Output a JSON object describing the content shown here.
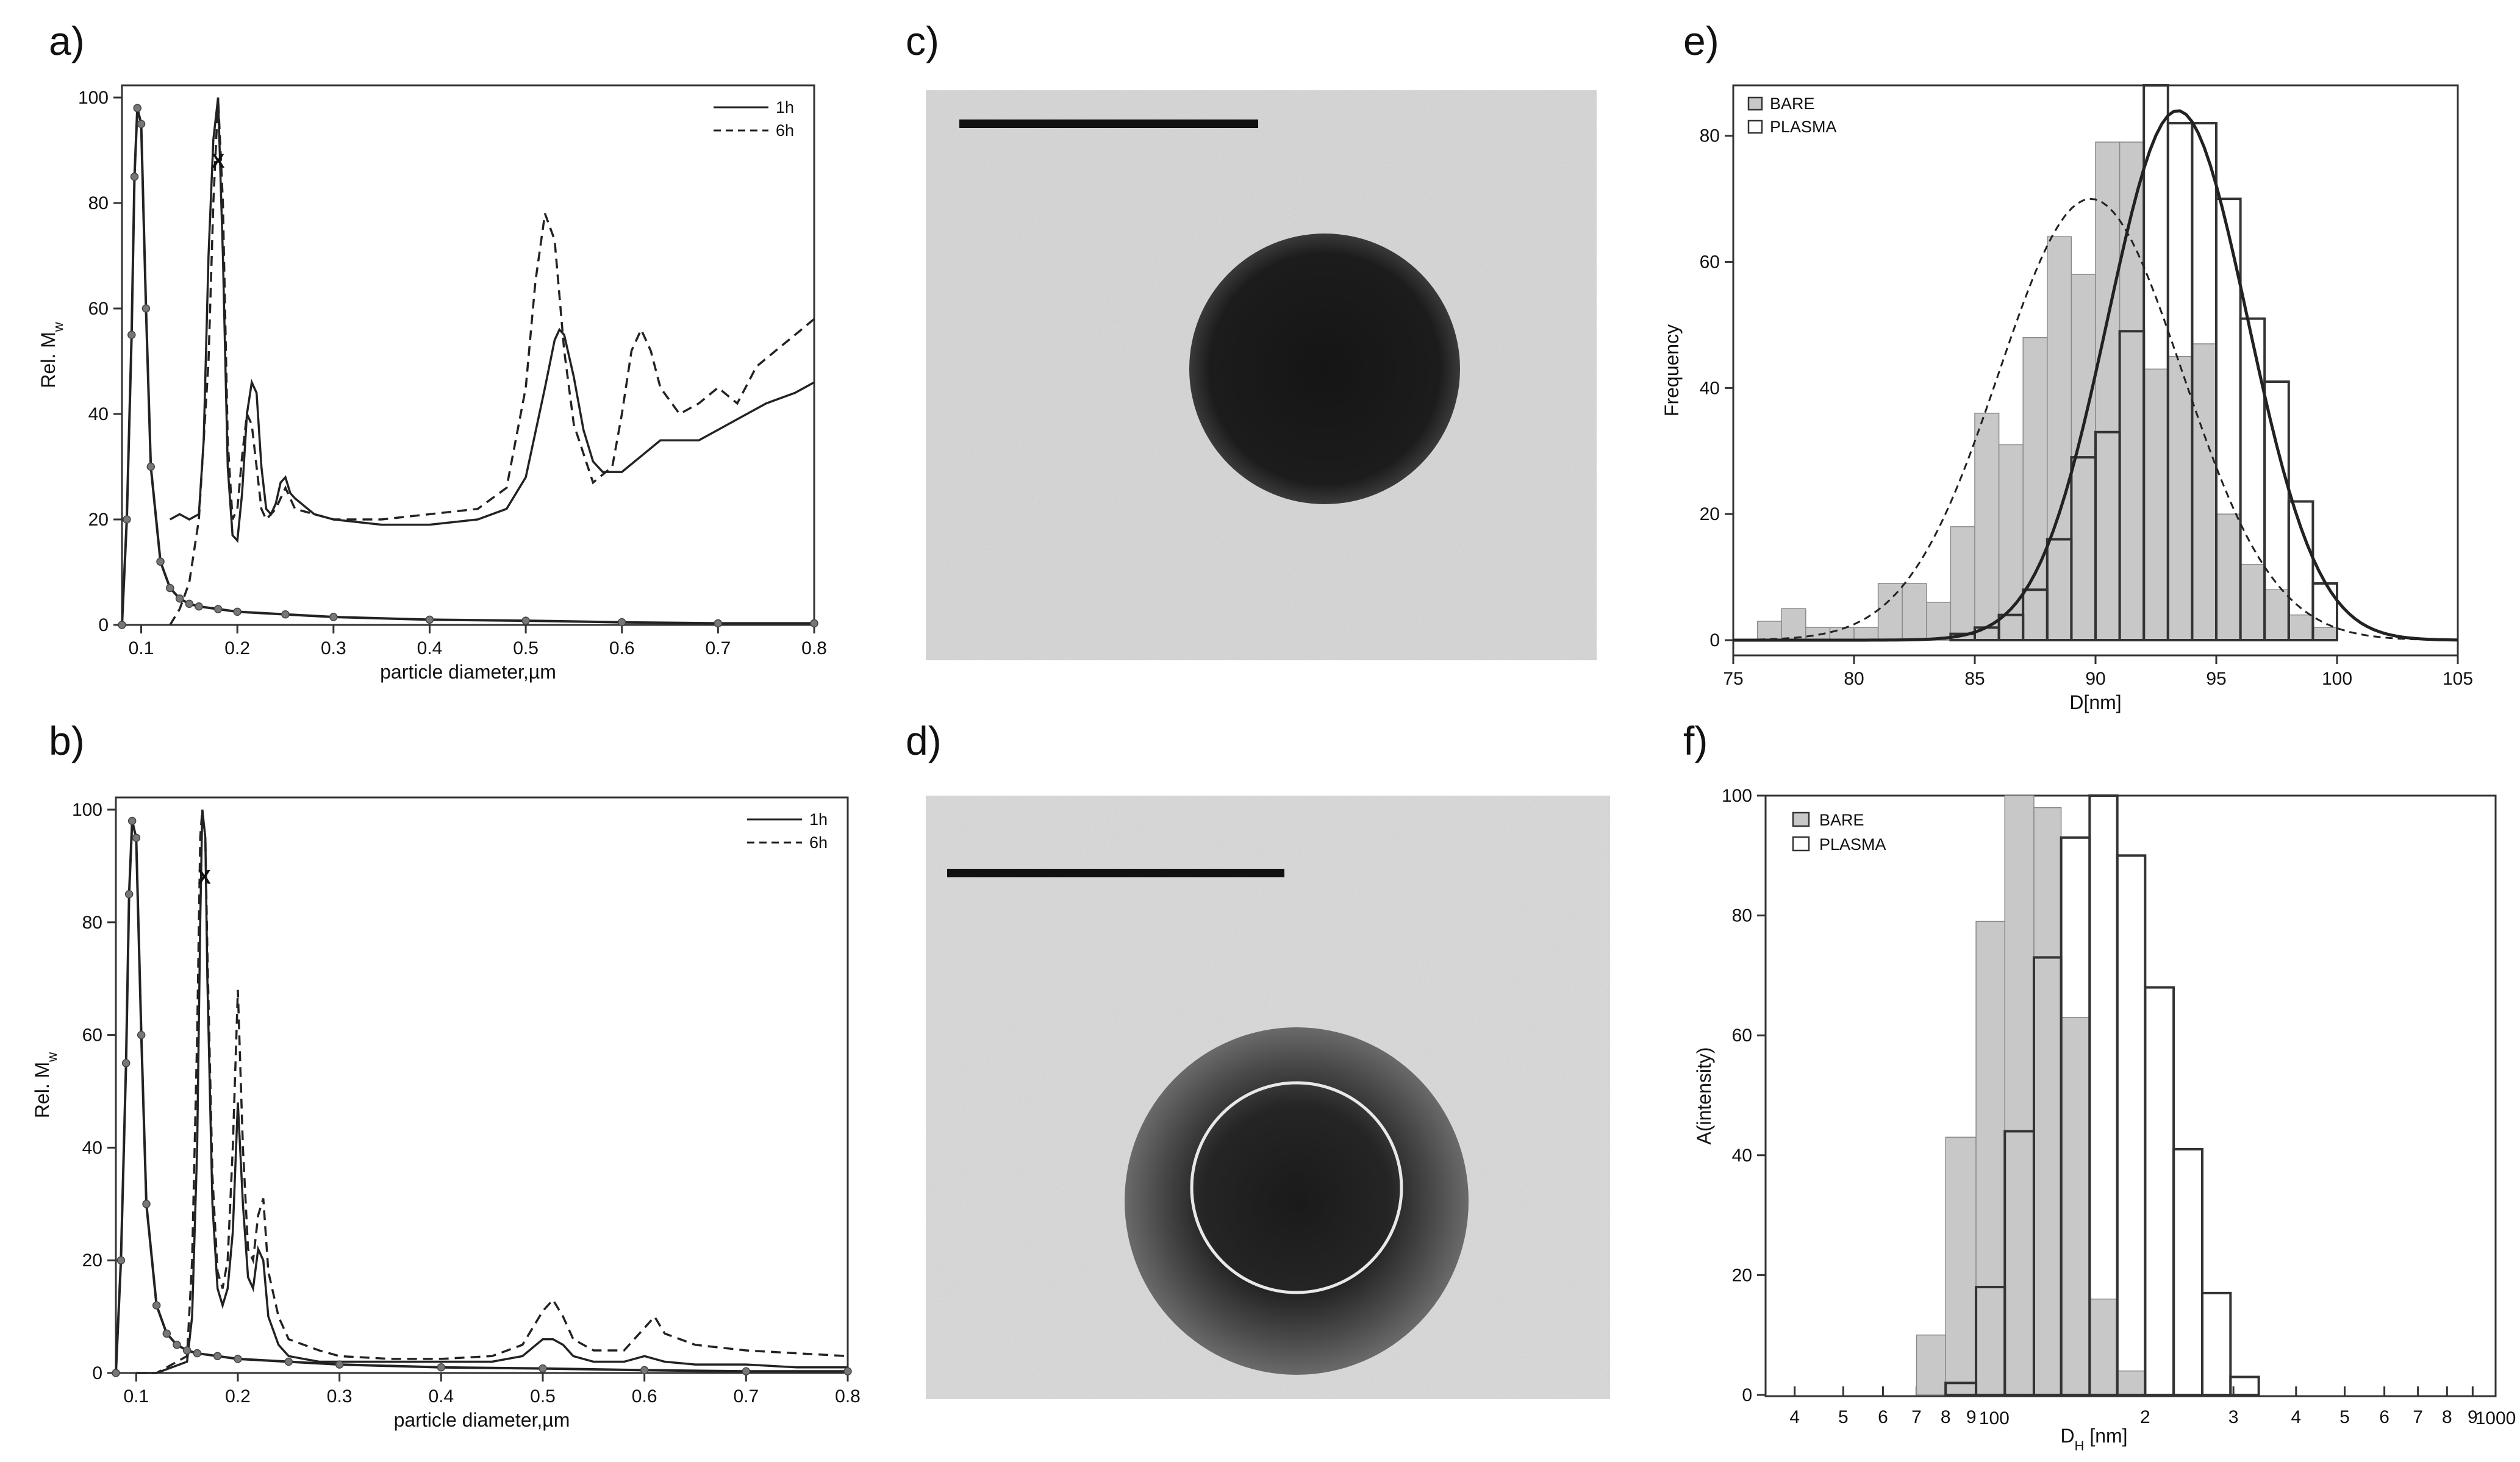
{
  "panels": {
    "a": {
      "label": "a)"
    },
    "b": {
      "label": "b)"
    },
    "c": {
      "label": "c)"
    },
    "d": {
      "label": "d)"
    },
    "e": {
      "label": "e)"
    },
    "f": {
      "label": "f)"
    }
  },
  "marker_text": "X",
  "colors": {
    "line": "#222222",
    "bar_fill": "#c8c8c8",
    "bar_edge": "#333333",
    "tem_bg": "#d8d8d8",
    "tem_particle": "#1a1a1a"
  },
  "chart_data": [
    {
      "id": "a",
      "type": "line",
      "xlabel": "particle diameter,µm",
      "ylabel": "Rel. M",
      "ylabel_sub": "w",
      "xlim": [
        0.08,
        0.8
      ],
      "ylim": [
        0,
        100
      ],
      "xticks": [
        "0.1",
        "0.2",
        "0.3",
        "0.4",
        "0.5",
        "0.6",
        "0.7",
        "0.8"
      ],
      "yticks": [
        "0",
        "20",
        "40",
        "60",
        "80",
        "100"
      ],
      "legend_position": "top-right",
      "marker_x": 0.18,
      "marker_y": 89,
      "series": [
        {
          "name": "1h",
          "style": "solid",
          "x": [
            0.13,
            0.14,
            0.15,
            0.16,
            0.165,
            0.17,
            0.175,
            0.18,
            0.185,
            0.19,
            0.195,
            0.2,
            0.205,
            0.21,
            0.215,
            0.22,
            0.225,
            0.23,
            0.235,
            0.24,
            0.245,
            0.25,
            0.255,
            0.26,
            0.28,
            0.3,
            0.35,
            0.4,
            0.45,
            0.48,
            0.5,
            0.52,
            0.53,
            0.535,
            0.54,
            0.55,
            0.56,
            0.57,
            0.58,
            0.6,
            0.62,
            0.64,
            0.66,
            0.68,
            0.7,
            0.72,
            0.75,
            0.78,
            0.8
          ],
          "y": [
            20,
            21,
            20,
            21,
            35,
            70,
            92,
            100,
            70,
            30,
            17,
            16,
            25,
            40,
            46,
            44,
            30,
            22,
            21,
            23,
            27,
            28,
            25,
            24,
            21,
            20,
            19,
            19,
            20,
            22,
            28,
            45,
            54,
            56,
            55,
            47,
            37,
            31,
            29,
            29,
            32,
            35,
            35,
            35,
            37,
            39,
            42,
            44,
            46
          ]
        },
        {
          "name": "6h",
          "style": "dashed",
          "x": [
            0.13,
            0.14,
            0.15,
            0.16,
            0.17,
            0.175,
            0.18,
            0.185,
            0.19,
            0.195,
            0.2,
            0.205,
            0.21,
            0.215,
            0.22,
            0.225,
            0.23,
            0.24,
            0.245,
            0.25,
            0.26,
            0.3,
            0.35,
            0.4,
            0.45,
            0.48,
            0.5,
            0.51,
            0.52,
            0.53,
            0.54,
            0.55,
            0.57,
            0.59,
            0.6,
            0.61,
            0.62,
            0.63,
            0.64,
            0.66,
            0.68,
            0.7,
            0.72,
            0.74,
            0.76,
            0.78,
            0.8
          ],
          "y": [
            0,
            3,
            8,
            20,
            50,
            80,
            100,
            80,
            35,
            20,
            22,
            32,
            40,
            38,
            30,
            22,
            20,
            22,
            24,
            26,
            22,
            20,
            20,
            21,
            22,
            26,
            45,
            65,
            78,
            73,
            52,
            38,
            27,
            30,
            40,
            52,
            56,
            52,
            45,
            40,
            42,
            45,
            42,
            49,
            52,
            55,
            58
          ]
        },
        {
          "name": "",
          "style": "dotted-line",
          "x": [
            0.08,
            0.085,
            0.09,
            0.093,
            0.096,
            0.1,
            0.105,
            0.11,
            0.12,
            0.13,
            0.14,
            0.15,
            0.16,
            0.18,
            0.2,
            0.25,
            0.3,
            0.4,
            0.5,
            0.6,
            0.7,
            0.8
          ],
          "y": [
            0,
            20,
            55,
            85,
            98,
            95,
            60,
            30,
            12,
            7,
            5,
            4,
            3.5,
            3,
            2.5,
            2,
            1.5,
            1,
            0.8,
            0.5,
            0.3,
            0.3
          ]
        }
      ]
    },
    {
      "id": "b",
      "type": "line",
      "xlabel": "particle diameter,µm",
      "ylabel": "Rel. M",
      "ylabel_sub": "w",
      "xlim": [
        0.08,
        0.8
      ],
      "ylim": [
        0,
        100
      ],
      "xticks": [
        "0.1",
        "0.2",
        "0.3",
        "0.4",
        "0.5",
        "0.6",
        "0.7",
        "0.8"
      ],
      "yticks": [
        "0",
        "20",
        "40",
        "60",
        "80",
        "100"
      ],
      "legend_position": "top-right",
      "marker_x": 0.167,
      "marker_y": 89,
      "series": [
        {
          "name": "1h",
          "style": "solid",
          "x": [
            0.1,
            0.12,
            0.15,
            0.155,
            0.16,
            0.163,
            0.165,
            0.168,
            0.17,
            0.175,
            0.18,
            0.185,
            0.19,
            0.195,
            0.2,
            0.205,
            0.21,
            0.215,
            0.22,
            0.225,
            0.23,
            0.24,
            0.25,
            0.28,
            0.3,
            0.35,
            0.4,
            0.45,
            0.48,
            0.5,
            0.51,
            0.52,
            0.53,
            0.55,
            0.58,
            0.6,
            0.62,
            0.65,
            0.7,
            0.75,
            0.8
          ],
          "y": [
            0,
            0,
            2,
            10,
            40,
            80,
            100,
            95,
            70,
            30,
            15,
            12,
            15,
            25,
            48,
            30,
            17,
            15,
            22,
            20,
            10,
            5,
            3,
            2,
            2,
            2,
            2,
            2,
            3,
            6,
            6,
            5,
            3,
            2,
            2,
            3,
            2,
            1.5,
            1.5,
            1,
            1
          ]
        },
        {
          "name": "6h",
          "style": "dashed",
          "x": [
            0.1,
            0.12,
            0.15,
            0.155,
            0.16,
            0.163,
            0.165,
            0.168,
            0.17,
            0.175,
            0.18,
            0.185,
            0.19,
            0.195,
            0.2,
            0.205,
            0.21,
            0.215,
            0.22,
            0.225,
            0.23,
            0.24,
            0.25,
            0.28,
            0.3,
            0.35,
            0.4,
            0.45,
            0.48,
            0.5,
            0.51,
            0.52,
            0.53,
            0.55,
            0.58,
            0.6,
            0.61,
            0.62,
            0.65,
            0.7,
            0.75,
            0.8
          ],
          "y": [
            0,
            0,
            3,
            20,
            60,
            95,
            100,
            95,
            75,
            35,
            18,
            15,
            20,
            40,
            68,
            40,
            22,
            20,
            28,
            31,
            18,
            10,
            6,
            4,
            3,
            2.5,
            2.5,
            3,
            5,
            11,
            13,
            10,
            6,
            4,
            4,
            8,
            10,
            7,
            5,
            4,
            3.5,
            3
          ]
        },
        {
          "name": "",
          "style": "dotted-line",
          "x": [
            0.08,
            0.085,
            0.09,
            0.093,
            0.096,
            0.1,
            0.105,
            0.11,
            0.12,
            0.13,
            0.14,
            0.15,
            0.16,
            0.18,
            0.2,
            0.25,
            0.3,
            0.4,
            0.5,
            0.6,
            0.7,
            0.8
          ],
          "y": [
            0,
            20,
            55,
            85,
            98,
            95,
            60,
            30,
            12,
            7,
            5,
            4,
            3.5,
            3,
            2.5,
            2,
            1.5,
            1,
            0.8,
            0.5,
            0.3,
            0.3
          ]
        }
      ]
    },
    {
      "id": "e",
      "type": "bar",
      "xlabel": "D[nm]",
      "ylabel": "Frequency",
      "xlim": [
        75,
        105
      ],
      "ylim": [
        0,
        88
      ],
      "xticks": [
        "75",
        "80",
        "85",
        "90",
        "95",
        "100",
        "105"
      ],
      "yticks": [
        "0",
        "20",
        "40",
        "60",
        "80"
      ],
      "legend_position": "top-left",
      "bin_width": 1,
      "series": [
        {
          "name": "BARE",
          "style": "filled",
          "bin_starts": [
            76,
            77,
            78,
            79,
            80,
            81,
            82,
            83,
            84,
            85,
            86,
            87,
            88,
            89,
            90,
            91,
            92,
            93,
            94,
            95,
            96,
            97,
            98,
            99
          ],
          "values": [
            3,
            5,
            2,
            2,
            2,
            9,
            9,
            6,
            18,
            36,
            31,
            48,
            64,
            58,
            79,
            79,
            43,
            45,
            47,
            20,
            12,
            8,
            4,
            2
          ]
        },
        {
          "name": "PLASMA",
          "style": "outline",
          "bin_starts": [
            84,
            85,
            86,
            87,
            88,
            89,
            90,
            91,
            92,
            93,
            94,
            95,
            96,
            97,
            98,
            99
          ],
          "values": [
            1,
            2,
            4,
            8,
            16,
            29,
            33,
            49,
            88,
            82,
            82,
            70,
            51,
            41,
            22,
            9
          ]
        }
      ],
      "fits": [
        {
          "name": "",
          "style": "dashed",
          "mean": 89.8,
          "sd": 3.8,
          "peak": 70
        },
        {
          "name": "",
          "style": "solid",
          "mean": 93.4,
          "sd": 2.9,
          "peak": 84
        }
      ]
    },
    {
      "id": "f",
      "type": "bar",
      "xscale": "log",
      "xlabel": "D",
      "xlabel_sub": "H",
      "xlabel_suffix": " [nm]",
      "ylabel": "A(intensity)",
      "xlim": [
        35,
        1000
      ],
      "ylim": [
        0,
        100
      ],
      "xtick_values": [
        40,
        50,
        60,
        70,
        80,
        90,
        100,
        200,
        300,
        400,
        500,
        600,
        700,
        800,
        900,
        1000
      ],
      "xticks": [
        "4",
        "5",
        "6",
        "7",
        "8",
        "9",
        "100",
        "2",
        "3",
        "4",
        "5",
        "6",
        "7",
        "8",
        "9",
        "1000"
      ],
      "yticks": [
        "0",
        "20",
        "40",
        "60",
        "80",
        "100"
      ],
      "legend_position": "top-left",
      "series": [
        {
          "name": "BARE",
          "style": "filled",
          "bin_edges": [
            70,
            80,
            92,
            105,
            120,
            136,
            155,
            176,
            200
          ],
          "values": [
            10,
            43,
            79,
            100,
            98,
            63,
            16,
            4
          ]
        },
        {
          "name": "PLASMA",
          "style": "outline",
          "bin_edges": [
            80,
            92,
            105,
            120,
            136,
            155,
            176,
            200,
            228,
            260,
            296,
            337,
            384,
            437
          ],
          "values": [
            2,
            18,
            44,
            73,
            93,
            100,
            90,
            68,
            41,
            17,
            3,
            0,
            0
          ]
        }
      ]
    }
  ]
}
